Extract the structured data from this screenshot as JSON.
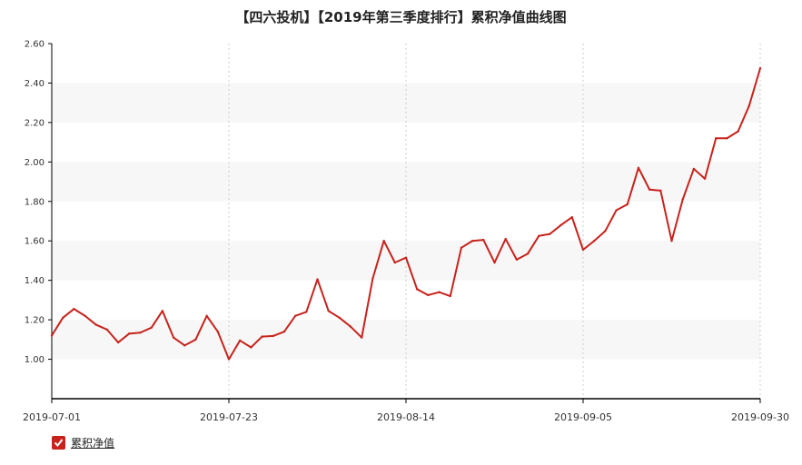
{
  "chart_data": {
    "type": "line",
    "title": "【四六投机】【2019年第三季度排行】累积净值曲线图",
    "xlabel": "",
    "ylabel": "",
    "ylim": [
      0.8,
      2.6
    ],
    "y_ticks": [
      "1.00",
      "1.20",
      "1.40",
      "1.60",
      "1.80",
      "2.00",
      "2.20",
      "2.40",
      "2.60"
    ],
    "x_tick_labels": [
      "2019-07-01",
      "2019-07-23",
      "2019-08-14",
      "2019-09-05",
      "2019-09-30"
    ],
    "grid": "horizontal alternating bands",
    "legend_position": "bottom-left",
    "line_color": "#c7231c",
    "series": [
      {
        "name": "累积净值",
        "values": [
          1.12,
          1.21,
          1.255,
          1.22,
          1.175,
          1.15,
          1.085,
          1.13,
          1.135,
          1.16,
          1.245,
          1.11,
          1.07,
          1.1,
          1.22,
          1.14,
          1.0,
          1.095,
          1.06,
          1.115,
          1.118,
          1.14,
          1.22,
          1.24,
          1.405,
          1.245,
          1.21,
          1.165,
          1.11,
          1.41,
          1.6,
          1.49,
          1.515,
          1.355,
          1.325,
          1.34,
          1.32,
          1.565,
          1.6,
          1.605,
          1.49,
          1.61,
          1.505,
          1.535,
          1.625,
          1.635,
          1.68,
          1.72,
          1.555,
          1.6,
          1.65,
          1.755,
          1.785,
          1.97,
          1.86,
          1.855,
          1.6,
          1.81,
          1.965,
          1.915,
          2.12,
          2.12,
          2.155,
          2.285,
          2.475
        ]
      }
    ]
  }
}
